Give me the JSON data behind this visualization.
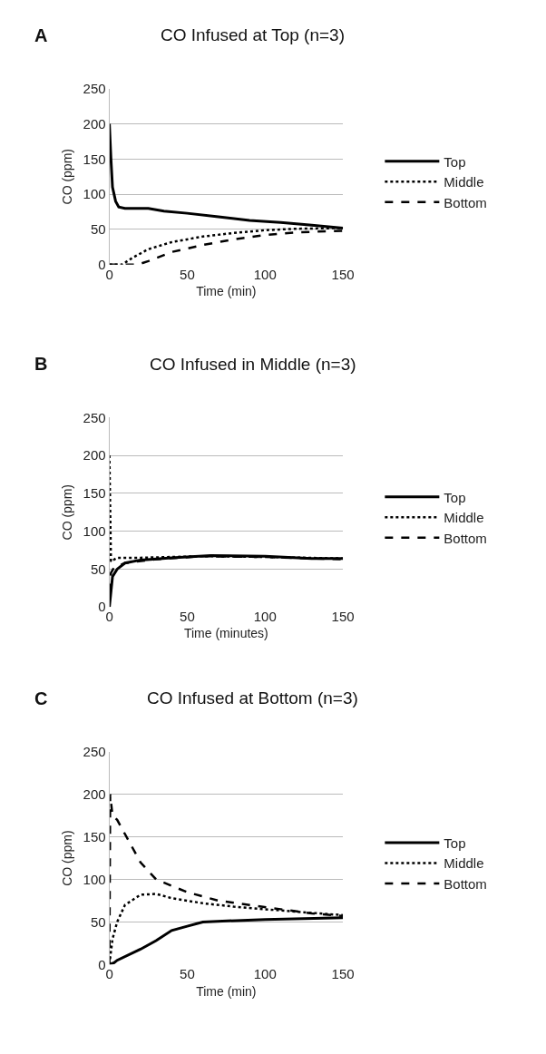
{
  "chart_data": [
    {
      "type": "line",
      "title": "CO Infused at Top (n=3)",
      "annotations": [
        "A"
      ],
      "xlabel": "Time (min)",
      "ylabel": "CO (ppm)",
      "xlim": [
        0,
        150
      ],
      "xticks": [
        0,
        50,
        100,
        150
      ],
      "ylim": [
        0,
        250
      ],
      "yticks": [
        0,
        50,
        100,
        150,
        200,
        250
      ],
      "grid": "y",
      "legend": "right",
      "series": [
        {
          "name": "Top",
          "color": "#000000",
          "line_style": "solid",
          "x": [
            0,
            1,
            2,
            4,
            6,
            10,
            25,
            35,
            50,
            70,
            90,
            110,
            130,
            150
          ],
          "values": [
            200,
            150,
            110,
            90,
            82,
            80,
            80,
            76,
            73,
            68,
            63,
            60,
            56,
            52
          ]
        },
        {
          "name": "Middle",
          "color": "#000000",
          "line_style": "dotted",
          "x": [
            0,
            8,
            15,
            25,
            40,
            60,
            80,
            100,
            120,
            150
          ],
          "values": [
            0,
            0,
            10,
            22,
            32,
            40,
            45,
            49,
            51,
            52
          ]
        },
        {
          "name": "Bottom",
          "color": "#000000",
          "line_style": "dashed",
          "x": [
            0,
            18,
            25,
            40,
            60,
            80,
            100,
            120,
            150
          ],
          "values": [
            0,
            0,
            5,
            18,
            28,
            36,
            42,
            46,
            48
          ]
        }
      ]
    },
    {
      "type": "line",
      "title": "CO Infused in Middle (n=3)",
      "annotations": [
        "B"
      ],
      "xlabel": "Time (minutes)",
      "ylabel": "CO (ppm)",
      "xlim": [
        0,
        150
      ],
      "xticks": [
        0,
        50,
        100,
        150
      ],
      "ylim": [
        0,
        250
      ],
      "yticks": [
        0,
        50,
        100,
        150,
        200,
        250
      ],
      "grid": "y",
      "legend": "right",
      "series": [
        {
          "name": "Top",
          "color": "#000000",
          "line_style": "solid",
          "x": [
            0,
            2,
            5,
            10,
            20,
            40,
            65,
            100,
            130,
            150
          ],
          "values": [
            0,
            40,
            50,
            58,
            62,
            65,
            68,
            67,
            64,
            64
          ]
        },
        {
          "name": "Middle",
          "color": "#000000",
          "line_style": "dotted",
          "x": [
            0,
            1,
            5,
            20,
            60,
            100,
            150
          ],
          "values": [
            200,
            60,
            65,
            65,
            67,
            66,
            64
          ]
        },
        {
          "name": "Bottom",
          "color": "#000000",
          "line_style": "dashed",
          "x": [
            0,
            1,
            3,
            10,
            30,
            60,
            100,
            150
          ],
          "values": [
            20,
            45,
            52,
            58,
            63,
            67,
            66,
            63
          ]
        }
      ]
    },
    {
      "type": "line",
      "title": "CO Infused at Bottom (n=3)",
      "annotations": [
        "C"
      ],
      "xlabel": "Time (min)",
      "ylabel": "CO (ppm)",
      "xlim": [
        0,
        150
      ],
      "xticks": [
        0,
        50,
        100,
        150
      ],
      "ylim": [
        0,
        250
      ],
      "yticks": [
        0,
        50,
        100,
        150,
        200,
        250
      ],
      "grid": "y",
      "legend": "right",
      "series": [
        {
          "name": "Top",
          "color": "#000000",
          "line_style": "solid",
          "x": [
            0,
            3,
            5,
            20,
            30,
            40,
            50,
            60,
            100,
            150
          ],
          "values": [
            0,
            2,
            5,
            18,
            28,
            40,
            45,
            50,
            53,
            55
          ]
        },
        {
          "name": "Middle",
          "color": "#000000",
          "line_style": "dotted",
          "x": [
            0,
            2,
            5,
            10,
            20,
            30,
            40,
            60,
            80,
            100,
            120,
            150
          ],
          "values": [
            0,
            30,
            50,
            70,
            82,
            83,
            78,
            72,
            68,
            65,
            62,
            58
          ]
        },
        {
          "name": "Bottom",
          "color": "#000000",
          "line_style": "dashed",
          "x": [
            0,
            0.5,
            2,
            5,
            20,
            30,
            50,
            70,
            90,
            110,
            130,
            150
          ],
          "values": [
            0,
            200,
            175,
            170,
            120,
            100,
            85,
            75,
            70,
            65,
            60,
            57
          ]
        }
      ]
    }
  ]
}
